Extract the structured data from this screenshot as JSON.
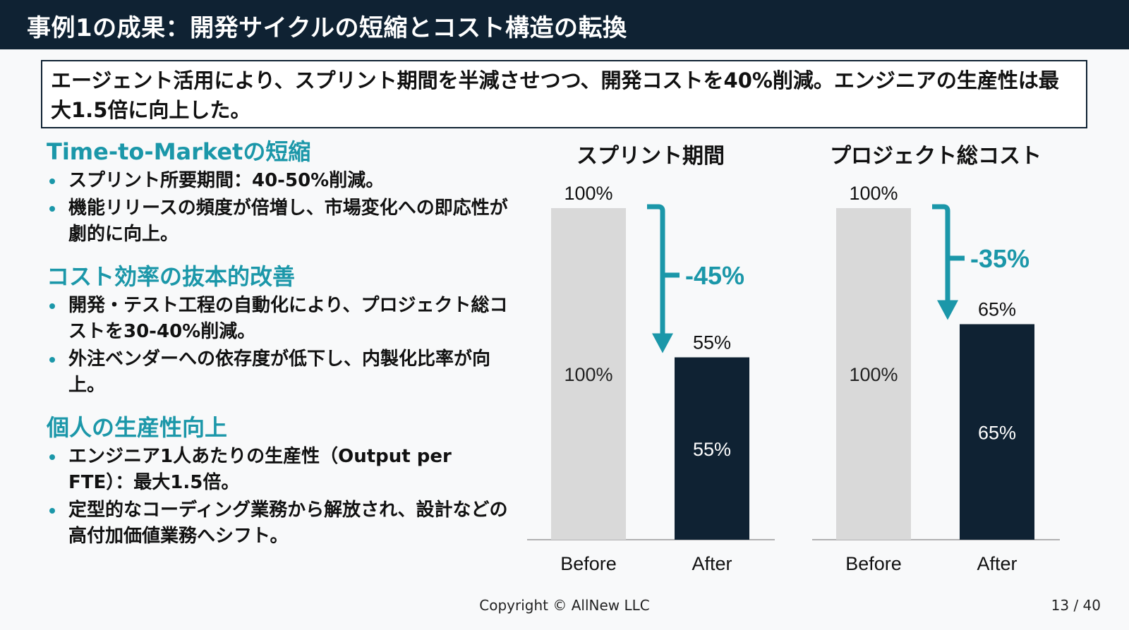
{
  "header": {
    "title": "事例1の成果：開発サイクルの短縮とコスト構造の転換"
  },
  "summary": {
    "text": "エージェント活用により、スプリント期間を半減させつつ、開発コストを40%削減。エンジニアの生産性は最大1.5倍に向上した。"
  },
  "sections": [
    {
      "heading": "Time-to-Marketの短縮",
      "bullets": [
        "スプリント所要期間：40-50%削減。",
        "機能リリースの頻度が倍増し、市場変化への即応性が劇的に向上。"
      ]
    },
    {
      "heading": "コスト効率の抜本的改善",
      "bullets": [
        "開発・テスト工程の自動化により、プロジェクト総コストを30-40%削減。",
        "外注ベンダーへの依存度が低下し、内製化比率が向上。"
      ]
    },
    {
      "heading": "個人の生産性向上",
      "bullets": [
        "エンジニア1人あたりの生産性（Output per FTE）：最大1.5倍。",
        "定型的なコーディング業務から解放され、設計などの高付加価値業務へシフト。"
      ]
    }
  ],
  "colors": {
    "before": "#d9d9d9",
    "after": "#0f2233",
    "accent": "#1b97a9"
  },
  "chart_data": [
    {
      "type": "bar",
      "title": "スプリント期間",
      "categories": [
        "Before",
        "After"
      ],
      "values": [
        100,
        55
      ],
      "top_labels": [
        "100%",
        "55%"
      ],
      "inner_labels": [
        "100%",
        "55%"
      ],
      "change_label": "-45%",
      "ylim": [
        0,
        100
      ],
      "grid": false
    },
    {
      "type": "bar",
      "title": "プロジェクト総コスト",
      "categories": [
        "Before",
        "After"
      ],
      "values": [
        100,
        65
      ],
      "top_labels": [
        "100%",
        "65%"
      ],
      "inner_labels": [
        "100%",
        "65%"
      ],
      "change_label": "-35%",
      "ylim": [
        0,
        100
      ],
      "grid": false
    }
  ],
  "footer": {
    "copyright": "Copyright © AllNew LLC",
    "page": "13 / 40"
  }
}
